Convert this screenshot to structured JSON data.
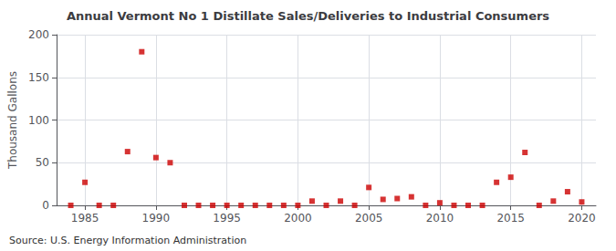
{
  "chart_data": {
    "type": "scatter",
    "title": "Annual Vermont No 1 Distillate Sales/Deliveries to Industrial Consumers",
    "ylabel": "Thousand Gallons",
    "annotation": "Source: U.S. Energy Information Administration",
    "x": [
      1984,
      1985,
      1986,
      1987,
      1988,
      1989,
      1990,
      1991,
      1992,
      1993,
      1994,
      1995,
      1996,
      1997,
      1998,
      1999,
      2000,
      2001,
      2002,
      2003,
      2004,
      2005,
      2006,
      2007,
      2008,
      2009,
      2010,
      2011,
      2012,
      2013,
      2014,
      2015,
      2016,
      2017,
      2018,
      2019,
      2020
    ],
    "values": [
      0,
      27,
      0,
      0,
      63,
      180,
      56,
      50,
      0,
      0,
      0,
      0,
      0,
      0,
      0,
      0,
      0,
      5,
      0,
      5,
      0,
      21,
      7,
      8,
      10,
      0,
      3,
      0,
      0,
      0,
      27,
      33,
      62,
      0,
      5,
      16,
      4
    ],
    "color": "#cc0000",
    "marker": "square",
    "xlim": [
      1983,
      2021
    ],
    "xticks": [
      1985,
      1990,
      1995,
      2000,
      2005,
      2010,
      2015,
      2020
    ],
    "ylim": [
      0,
      200
    ],
    "yticks": [
      0,
      50,
      100,
      150,
      200
    ],
    "grid": true
  }
}
